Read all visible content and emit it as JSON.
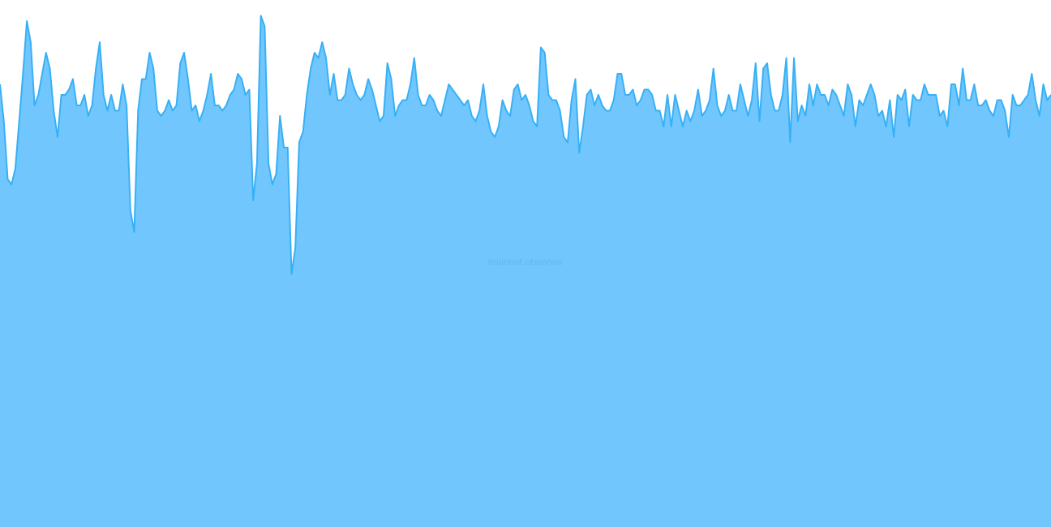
{
  "watermark": "mainnet.observer",
  "colors": {
    "background": "#ffffff",
    "area_fill": "#71c7fd",
    "line_stroke": "#38b0f5"
  },
  "chart_data": {
    "type": "area",
    "title": "",
    "xlabel": "",
    "ylabel": "",
    "axes_visible": false,
    "grid": false,
    "legend": "none",
    "ylim": [
      0,
      100
    ],
    "series": [
      {
        "values": [
          84,
          77,
          66,
          65,
          68,
          77,
          86,
          96,
          92,
          80,
          82,
          86,
          90,
          87,
          79,
          74,
          82,
          82,
          83,
          85,
          80,
          80,
          82,
          78,
          80,
          87,
          92,
          82,
          79,
          82,
          79,
          79,
          84,
          80,
          60,
          56,
          79,
          85,
          85,
          90,
          87,
          79,
          78,
          79,
          81,
          79,
          80,
          88,
          90,
          85,
          79,
          80,
          77,
          79,
          82,
          86,
          80,
          80,
          79,
          80,
          82,
          83,
          86,
          85,
          82,
          83,
          62,
          69,
          97,
          95,
          69,
          65,
          67,
          78,
          72,
          72,
          48,
          53,
          73,
          75,
          82,
          87,
          90,
          89,
          92,
          89,
          82,
          86,
          81,
          81,
          82,
          87,
          84,
          82,
          81,
          82,
          85,
          83,
          80,
          77,
          78,
          88,
          85,
          78,
          80,
          81,
          81,
          84,
          89,
          82,
          80,
          80,
          82,
          81,
          79,
          78,
          81,
          84,
          83,
          82,
          81,
          80,
          81,
          78,
          77,
          79,
          84,
          78,
          75,
          74,
          76,
          81,
          79,
          78,
          83,
          84,
          81,
          82,
          80,
          77,
          76,
          91,
          90,
          82,
          81,
          81,
          79,
          74,
          73,
          81,
          85,
          71,
          76,
          82,
          83,
          80,
          82,
          80,
          79,
          79,
          81,
          86,
          86,
          82,
          82,
          83,
          80,
          81,
          83,
          83,
          82,
          79,
          79,
          76,
          82,
          76,
          82,
          79,
          76,
          79,
          77,
          79,
          83,
          78,
          79,
          81,
          87,
          80,
          78,
          79,
          82,
          79,
          79,
          84,
          81,
          78,
          81,
          88,
          77,
          87,
          88,
          82,
          79,
          79,
          82,
          89,
          73,
          89,
          77,
          80,
          78,
          84,
          80,
          84,
          82,
          82,
          80,
          83,
          82,
          80,
          78,
          84,
          82,
          76,
          81,
          80,
          82,
          84,
          82,
          78,
          79,
          76,
          81,
          74,
          82,
          81,
          83,
          76,
          82,
          81,
          81,
          84,
          82,
          82,
          82,
          78,
          79,
          76,
          84,
          84,
          80,
          87,
          81,
          81,
          84,
          80,
          80,
          81,
          79,
          78,
          81,
          81,
          79,
          74,
          82,
          80,
          80,
          81,
          82,
          86,
          81,
          78,
          84,
          81,
          82
        ]
      }
    ]
  }
}
